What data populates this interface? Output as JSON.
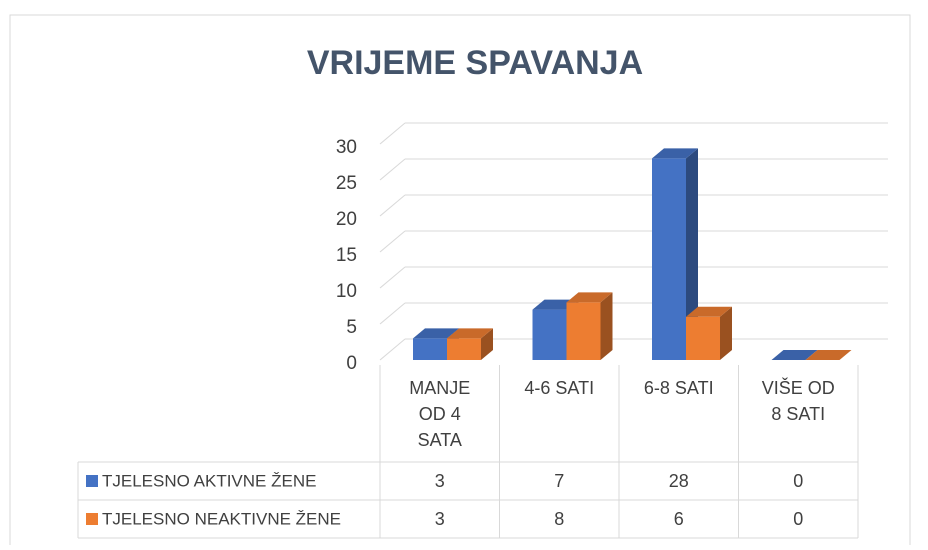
{
  "chart_data": {
    "type": "bar3d",
    "title": "VRIJEME SPAVANJA",
    "categories": [
      "MANJE OD 4 SATA",
      "4-6 SATI",
      "6-8 SATI",
      "VIŠE OD 8 SATI"
    ],
    "series": [
      {
        "name": "TJELESNO AKTIVNE ŽENE",
        "color": "#4472c4",
        "values": [
          3,
          7,
          28,
          0
        ]
      },
      {
        "name": "TJELESNO NEAKTIVNE ŽENE",
        "color": "#ed7d31",
        "values": [
          3,
          8,
          6,
          0
        ]
      }
    ],
    "ylim": [
      0,
      30
    ],
    "yticks": [
      0,
      5,
      10,
      15,
      20,
      25,
      30
    ],
    "grid": true
  }
}
